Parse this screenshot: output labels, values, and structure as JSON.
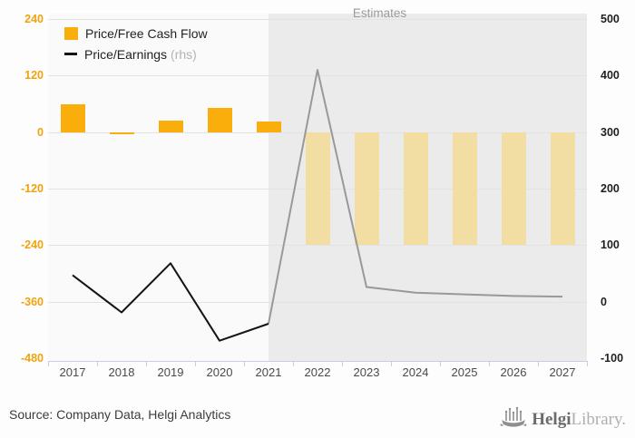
{
  "estimates_label": "Estimates",
  "source_text": "Source: Company Data, Helgi Analytics",
  "legend": {
    "bar_series_label": "Price/Free Cash Flow",
    "line_series_label": "Price/Earnings",
    "line_series_suffix": "(rhs)"
  },
  "logo": {
    "word1": "Helgi",
    "word2": "Library."
  },
  "colors": {
    "accent": "#F9AE0B",
    "accentLight": "#F2DDA3",
    "lineActual": "#141414",
    "lineEstimate": "#999999",
    "estimatesBg": "#EBEBEB",
    "estimatesText": "#9B9B9B",
    "grid": "#E3E3E3",
    "axisLine": "#C7CDE6",
    "axisLeftText": "#F0A30A",
    "axisRightText": "#1F1F1F",
    "xLabelText": "#4A4A4A"
  },
  "chart_data": {
    "type": "bar+line combo",
    "title": "",
    "categories": [
      "2017",
      "2018",
      "2019",
      "2020",
      "2021",
      "2022",
      "2023",
      "2024",
      "2025",
      "2026",
      "2027"
    ],
    "series": [
      {
        "name": "Price/Free Cash Flow",
        "type": "bar",
        "axis": "left",
        "values": [
          60,
          -5,
          24,
          52,
          22,
          -240,
          -240,
          -240,
          -240,
          -240,
          -240
        ]
      },
      {
        "name": "Price/Earnings (rhs)",
        "type": "line",
        "axis": "right",
        "values": [
          47,
          -19,
          68,
          -69,
          -39,
          410,
          26,
          16,
          13,
          10,
          9
        ]
      }
    ],
    "estimate_from_index": 5,
    "estimates_annotation": "Estimates",
    "left_axis": {
      "ticks": [
        240,
        120,
        0,
        -120,
        -240,
        -360,
        -480
      ],
      "range": [
        -480,
        240
      ]
    },
    "right_axis": {
      "ticks": [
        500,
        400,
        300,
        200,
        100,
        0,
        -100
      ],
      "range": [
        -100,
        500
      ]
    },
    "grid": true,
    "legend_position": "top-left"
  }
}
